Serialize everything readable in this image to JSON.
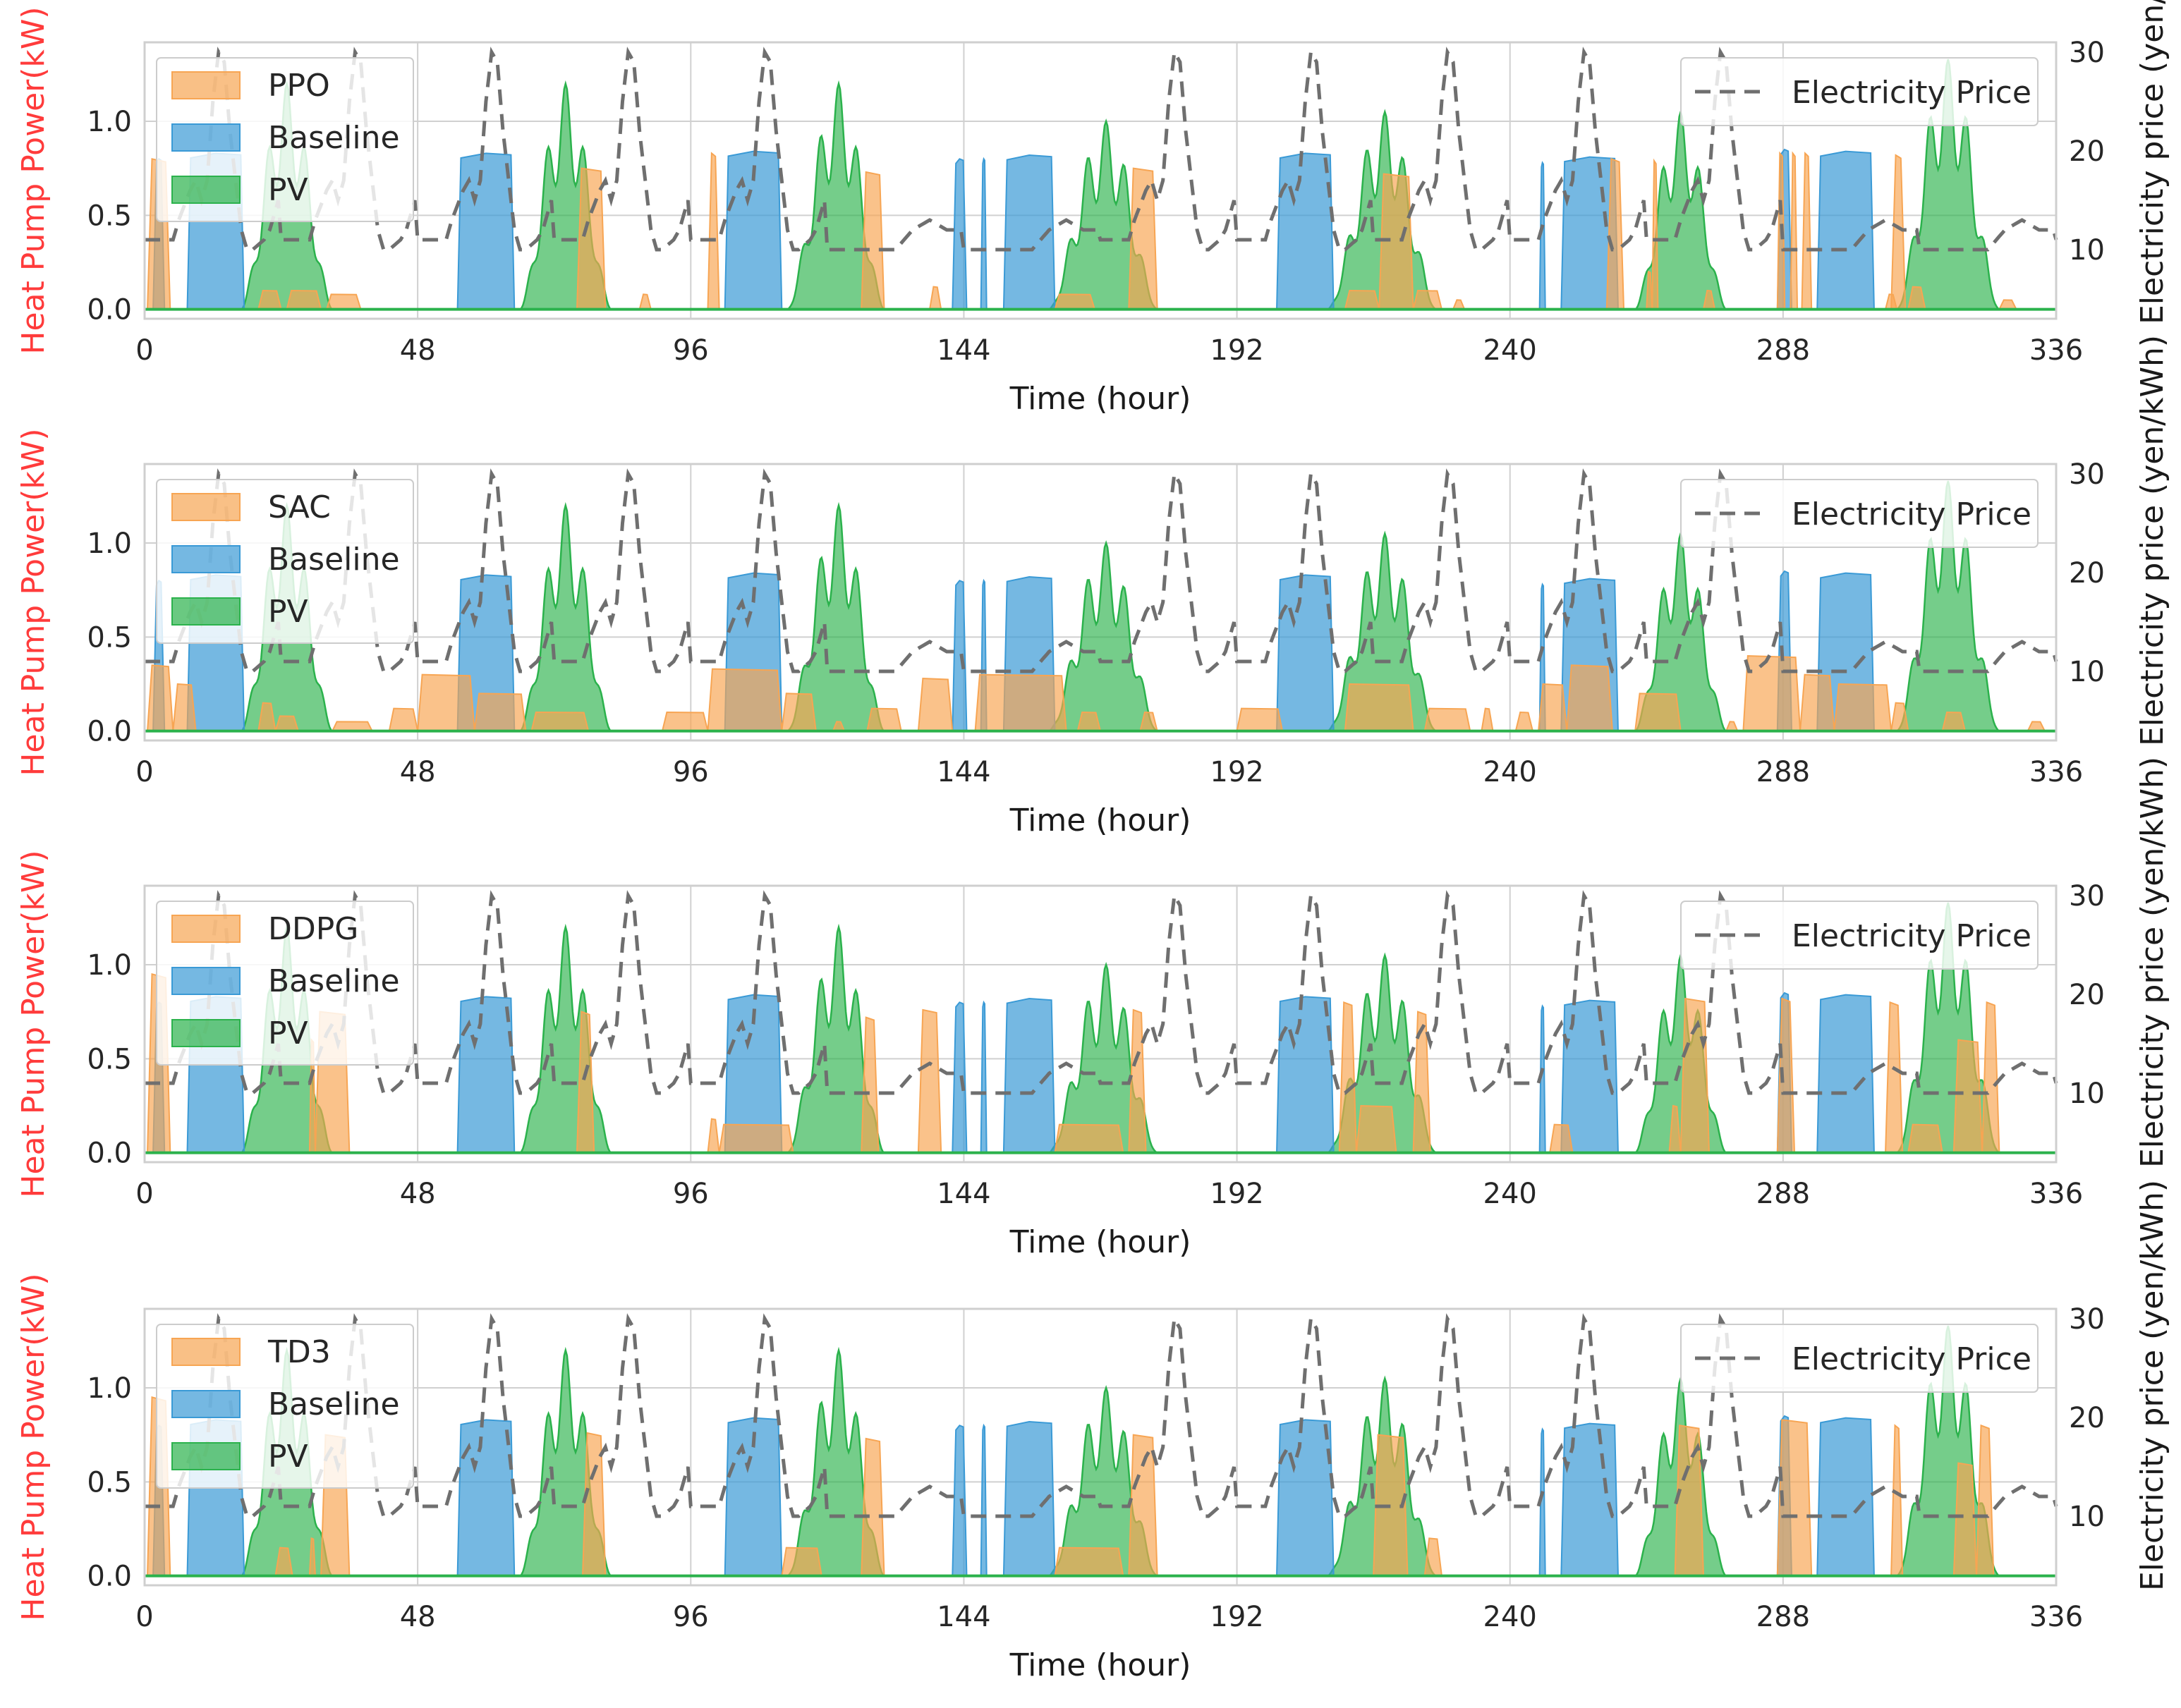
{
  "chart_data": [
    {
      "type": "area",
      "controller_label": "PPO",
      "xlabel": "Time (hour)",
      "ylabel_left": "Heat Pump Power(kW)",
      "ylabel_right": "Electricity price (yen/kW",
      "xlim": [
        0,
        336
      ],
      "ylim_left": [
        -0.05,
        1.42
      ],
      "ylim_right": [
        3,
        31
      ],
      "x_ticks": [
        0,
        48,
        96,
        144,
        192,
        240,
        288,
        336
      ],
      "y_ticks_left": [
        "0.0",
        "0.5",
        "1.0"
      ],
      "y_ticks_right": [
        "10",
        "20",
        "30"
      ],
      "grid": true,
      "legend_left": "top-left",
      "legend_right": "top-right",
      "price_legend": "Electricity Price",
      "baseline_label": "Baseline",
      "pv_label": "PV",
      "controller_segments": [
        [
          0.5,
          4.5,
          0.8
        ],
        [
          20,
          24,
          0.1
        ],
        [
          25,
          31,
          0.1
        ],
        [
          32,
          38,
          0.08
        ],
        [
          76,
          81,
          0.75
        ],
        [
          87,
          89,
          0.08
        ],
        [
          99,
          101,
          0.83
        ],
        [
          126,
          130,
          0.73
        ],
        [
          138,
          140,
          0.12
        ],
        [
          160,
          167,
          0.08
        ],
        [
          173,
          178,
          0.75
        ],
        [
          211,
          217,
          0.1
        ],
        [
          217,
          223,
          0.72
        ],
        [
          223,
          228,
          0.1
        ],
        [
          230,
          232,
          0.05
        ],
        [
          257,
          260,
          0.8
        ],
        [
          264,
          265,
          0.2
        ],
        [
          265,
          266,
          0.79
        ],
        [
          274,
          276,
          0.1
        ],
        [
          287,
          288.3,
          0.83
        ],
        [
          289.3,
          290.5,
          0.83
        ],
        [
          291.3,
          293,
          0.83
        ],
        [
          306,
          308,
          0.08
        ],
        [
          307,
          309.5,
          0.82
        ],
        [
          310,
          313,
          0.12
        ],
        [
          326,
          329,
          0.05
        ]
      ],
      "baseline_segments": [
        [
          1.5,
          3.5,
          0.8
        ],
        [
          7.5,
          17.5,
          0.83
        ],
        [
          55,
          65,
          0.83
        ],
        [
          102,
          112,
          0.84
        ],
        [
          142,
          144.5,
          0.8
        ],
        [
          147,
          148,
          0.8
        ],
        [
          151,
          160,
          0.82
        ],
        [
          199,
          209,
          0.83
        ],
        [
          245.2,
          246.2,
          0.78
        ],
        [
          249,
          259,
          0.81
        ],
        [
          287,
          289.5,
          0.85
        ],
        [
          294,
          304,
          0.84
        ]
      ]
    },
    {
      "type": "area",
      "controller_label": "SAC",
      "xlabel": "Time (hour)",
      "ylabel_left": "Heat Pump Power(kW)",
      "ylabel_right": "Electricity price (yen/kWh)",
      "xlim": [
        0,
        336
      ],
      "ylim_left": [
        -0.05,
        1.42
      ],
      "ylim_right": [
        3,
        31
      ],
      "x_ticks": [
        0,
        48,
        96,
        144,
        192,
        240,
        288,
        336
      ],
      "y_ticks_left": [
        "0.0",
        "0.5",
        "1.0"
      ],
      "y_ticks_right": [
        "10",
        "20",
        "30"
      ],
      "grid": true,
      "legend_left": "top-left",
      "legend_right": "top-right",
      "price_legend": "Electricity Price",
      "baseline_label": "Baseline",
      "pv_label": "PV",
      "controller_segments": [
        [
          0.5,
          5,
          0.35
        ],
        [
          5,
          9,
          0.25
        ],
        [
          20,
          23,
          0.15
        ],
        [
          23,
          27,
          0.08
        ],
        [
          33,
          40,
          0.05
        ],
        [
          43,
          48,
          0.12
        ],
        [
          48,
          58,
          0.3
        ],
        [
          58,
          67,
          0.2
        ],
        [
          68,
          78,
          0.1
        ],
        [
          91,
          99,
          0.1
        ],
        [
          99,
          112,
          0.33
        ],
        [
          112,
          118,
          0.2
        ],
        [
          121,
          123,
          0.05
        ],
        [
          127,
          133,
          0.12
        ],
        [
          136,
          142,
          0.28
        ],
        [
          146,
          162,
          0.3
        ],
        [
          164,
          168,
          0.1
        ],
        [
          175,
          178,
          0.1
        ],
        [
          192,
          200,
          0.12
        ],
        [
          211,
          223,
          0.25
        ],
        [
          225,
          233,
          0.12
        ],
        [
          235,
          237,
          0.12
        ],
        [
          241,
          244,
          0.1
        ],
        [
          245,
          250,
          0.25
        ],
        [
          250,
          258,
          0.35
        ],
        [
          262,
          270,
          0.2
        ],
        [
          278,
          280,
          0.05
        ],
        [
          281,
          291,
          0.4
        ],
        [
          291,
          297,
          0.3
        ],
        [
          297,
          307,
          0.25
        ],
        [
          307,
          310,
          0.15
        ],
        [
          316,
          320,
          0.1
        ],
        [
          331,
          334,
          0.05
        ]
      ],
      "baseline_segments": [
        [
          1.5,
          3.5,
          0.8
        ],
        [
          7.5,
          17.5,
          0.83
        ],
        [
          55,
          65,
          0.83
        ],
        [
          102,
          112,
          0.84
        ],
        [
          142,
          144.5,
          0.8
        ],
        [
          147,
          148,
          0.8
        ],
        [
          151,
          160,
          0.82
        ],
        [
          199,
          209,
          0.83
        ],
        [
          245.2,
          246.2,
          0.78
        ],
        [
          249,
          259,
          0.81
        ],
        [
          287,
          289.5,
          0.85
        ],
        [
          294,
          304,
          0.84
        ]
      ]
    },
    {
      "type": "area",
      "controller_label": "DDPG",
      "xlabel": "Time (hour)",
      "ylabel_left": "Heat Pump Power(kW)",
      "ylabel_right": "Electricity price (yen/kWh)",
      "xlim": [
        0,
        336
      ],
      "ylim_left": [
        -0.05,
        1.42
      ],
      "ylim_right": [
        3,
        31
      ],
      "x_ticks": [
        0,
        48,
        96,
        144,
        192,
        240,
        288,
        336
      ],
      "y_ticks_left": [
        "0.0",
        "0.5",
        "1.0"
      ],
      "y_ticks_right": [
        "10",
        "20",
        "30"
      ],
      "grid": true,
      "legend_left": "top-left",
      "legend_right": "top-right",
      "price_legend": "Electricity Price",
      "baseline_label": "Baseline",
      "pv_label": "PV",
      "controller_segments": [
        [
          0.5,
          4.5,
          0.95
        ],
        [
          29,
          30,
          0.6
        ],
        [
          30,
          36,
          0.75
        ],
        [
          76,
          79,
          0.75
        ],
        [
          99,
          101,
          0.18
        ],
        [
          101,
          114,
          0.15
        ],
        [
          126,
          129,
          0.72
        ],
        [
          136,
          140,
          0.76
        ],
        [
          160,
          172,
          0.15
        ],
        [
          173,
          176,
          0.76
        ],
        [
          210,
          213,
          0.8
        ],
        [
          213,
          220,
          0.25
        ],
        [
          223,
          226,
          0.75
        ],
        [
          247,
          251,
          0.15
        ],
        [
          268,
          270,
          0.25
        ],
        [
          270,
          275,
          0.82
        ],
        [
          287,
          290,
          0.82
        ],
        [
          306,
          309,
          0.8
        ],
        [
          310,
          316,
          0.15
        ],
        [
          318,
          323,
          0.6
        ],
        [
          323,
          326,
          0.8
        ]
      ],
      "baseline_segments": [
        [
          1.5,
          3.5,
          0.8
        ],
        [
          7.5,
          17.5,
          0.83
        ],
        [
          55,
          65,
          0.83
        ],
        [
          102,
          112,
          0.84
        ],
        [
          142,
          144.5,
          0.8
        ],
        [
          147,
          148,
          0.8
        ],
        [
          151,
          160,
          0.82
        ],
        [
          199,
          209,
          0.83
        ],
        [
          245.2,
          246.2,
          0.78
        ],
        [
          249,
          259,
          0.81
        ],
        [
          287,
          289.5,
          0.85
        ],
        [
          294,
          304,
          0.84
        ]
      ]
    },
    {
      "type": "area",
      "controller_label": "TD3",
      "xlabel": "Time (hour)",
      "ylabel_left": "Heat Pump Power(kW)",
      "ylabel_right": "Electricity price (yen/kWh)",
      "xlim": [
        0,
        336
      ],
      "ylim_left": [
        -0.05,
        1.42
      ],
      "ylim_right": [
        3,
        31
      ],
      "x_ticks": [
        0,
        48,
        96,
        144,
        192,
        240,
        288,
        336
      ],
      "y_ticks_left": [
        "0.0",
        "0.5",
        "1.0"
      ],
      "y_ticks_right": [
        "10",
        "20",
        "30"
      ],
      "grid": true,
      "legend_left": "top-left",
      "legend_right": "top-right",
      "price_legend": "Electricity Price",
      "baseline_label": "Baseline",
      "pv_label": "PV",
      "controller_segments": [
        [
          0.5,
          4.5,
          0.95
        ],
        [
          23,
          26,
          0.15
        ],
        [
          29,
          30,
          0.2
        ],
        [
          31,
          36,
          0.75
        ],
        [
          77,
          81,
          0.76
        ],
        [
          112,
          119,
          0.15
        ],
        [
          126,
          130,
          0.73
        ],
        [
          160,
          172,
          0.15
        ],
        [
          173,
          178,
          0.75
        ],
        [
          216,
          222,
          0.75
        ],
        [
          225,
          228,
          0.2
        ],
        [
          269,
          274,
          0.8
        ],
        [
          287,
          293,
          0.83
        ],
        [
          307,
          309,
          0.8
        ],
        [
          318,
          322,
          0.6
        ],
        [
          322,
          325,
          0.8
        ]
      ],
      "baseline_segments": [
        [
          1.5,
          3.5,
          0.8
        ],
        [
          7.5,
          17.5,
          0.83
        ],
        [
          55,
          65,
          0.83
        ],
        [
          102,
          112,
          0.84
        ],
        [
          142,
          144.5,
          0.8
        ],
        [
          147,
          148,
          0.8
        ],
        [
          151,
          160,
          0.82
        ],
        [
          199,
          209,
          0.83
        ],
        [
          245.2,
          246.2,
          0.78
        ],
        [
          249,
          259,
          0.81
        ],
        [
          287,
          289.5,
          0.85
        ],
        [
          294,
          304,
          0.84
        ]
      ]
    }
  ],
  "pv_peaks": [
    [
      [
        17,
        25,
        33
      ],
      1.2
    ],
    [
      [
        66,
        74,
        82
      ],
      1.2
    ],
    [
      [
        113,
        122,
        130
      ],
      1.2
    ],
    [
      [
        159,
        169,
        178
      ],
      1.0
    ],
    [
      [
        208,
        218,
        227
      ],
      1.05
    ],
    [
      [
        262,
        270,
        278
      ],
      1.05
    ],
    [
      [
        308,
        317,
        326
      ],
      1.33
    ]
  ],
  "price_profile": {
    "weekday": [
      [
        0,
        11
      ],
      [
        5,
        11
      ],
      [
        6,
        13
      ],
      [
        8,
        16
      ],
      [
        9,
        17
      ],
      [
        10,
        15
      ],
      [
        11,
        17
      ],
      [
        12,
        25
      ],
      [
        13,
        30
      ],
      [
        14,
        29
      ],
      [
        15,
        22
      ],
      [
        17,
        12
      ],
      [
        18,
        10
      ],
      [
        19,
        10
      ],
      [
        21,
        11
      ],
      [
        22,
        12
      ],
      [
        25,
        18
      ],
      [
        26,
        30
      ],
      [
        27,
        29
      ],
      [
        29,
        24
      ],
      [
        31,
        15
      ],
      [
        33,
        12
      ],
      [
        36,
        12
      ]
    ],
    "weekend": [
      [
        0,
        10
      ],
      [
        12,
        10
      ],
      [
        15,
        12
      ],
      [
        18,
        13
      ],
      [
        21,
        12
      ],
      [
        24,
        12
      ]
    ],
    "weekend_days": [
      5,
      6
    ]
  },
  "colors": {
    "controller": "#f7a553",
    "baseline": "#3a9ad6",
    "pv": "#2bb24c",
    "price": "#6f6f6f",
    "left_axis_label": "#ff3b3b",
    "grid": "#d0d0d0"
  }
}
